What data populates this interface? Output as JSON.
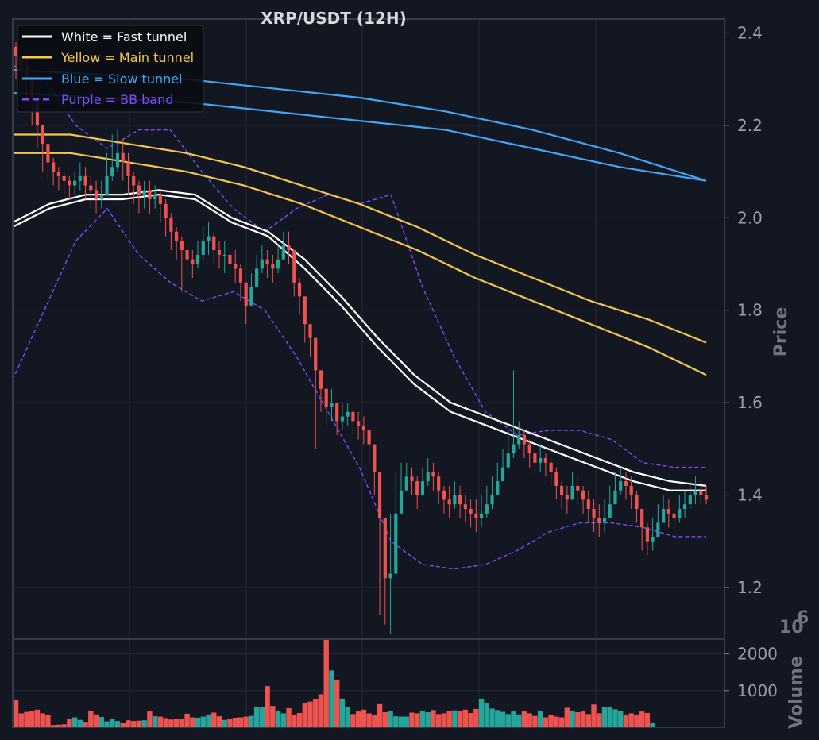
{
  "chart_data": {
    "type": "candlestick",
    "title": "XRP/USDT (12H)",
    "ylabel": "Price",
    "ylim": [
      1.09,
      2.43
    ],
    "yticks": [
      "2.4",
      "2.2",
      "2.0",
      "1.8",
      "1.6",
      "1.4",
      "1.2"
    ],
    "grid": true,
    "legend_position": "top-left",
    "legend": [
      {
        "label": "White = Fast tunnel",
        "color": "#ffffff",
        "style": "solid"
      },
      {
        "label": "Yellow = Main tunnel",
        "color": "#f5c84c",
        "style": "solid"
      },
      {
        "label": "Blue = Slow tunnel",
        "color": "#42a5f5",
        "style": "solid"
      },
      {
        "label": "Purple = BB band",
        "color": "#7c4dff",
        "style": "dashed"
      }
    ],
    "colors": {
      "up": "#26a69a",
      "down": "#ef5350",
      "fast": "#ffffff",
      "main": "#f5c84c",
      "slow": "#42a5f5",
      "bb": "#7c4dff"
    },
    "candle_count": 120,
    "close": [
      2.35,
      2.33,
      2.3,
      2.26,
      2.2,
      2.16,
      2.12,
      2.1,
      2.09,
      2.08,
      2.07,
      2.08,
      2.09,
      2.07,
      2.06,
      2.04,
      2.05,
      2.09,
      2.11,
      2.14,
      2.12,
      2.09,
      2.07,
      2.05,
      2.06,
      2.04,
      2.05,
      2.03,
      2.0,
      1.97,
      1.95,
      1.93,
      1.91,
      1.9,
      1.92,
      1.95,
      1.96,
      1.93,
      1.92,
      1.92,
      1.9,
      1.89,
      1.86,
      1.81,
      1.85,
      1.89,
      1.91,
      1.9,
      1.89,
      1.91,
      1.94,
      1.93,
      1.86,
      1.83,
      1.77,
      1.74,
      1.67,
      1.63,
      1.59,
      1.6,
      1.56,
      1.57,
      1.58,
      1.56,
      1.55,
      1.54,
      1.51,
      1.45,
      1.35,
      1.22,
      1.23,
      1.36,
      1.41,
      1.44,
      1.43,
      1.4,
      1.43,
      1.45,
      1.44,
      1.41,
      1.39,
      1.38,
      1.4,
      1.38,
      1.37,
      1.36,
      1.35,
      1.36,
      1.38,
      1.4,
      1.43,
      1.46,
      1.49,
      1.51,
      1.53,
      1.51,
      1.49,
      1.47,
      1.48,
      1.47,
      1.45,
      1.42,
      1.4,
      1.39,
      1.42,
      1.41,
      1.39,
      1.37,
      1.35,
      1.34,
      1.35,
      1.38,
      1.41,
      1.43,
      1.42,
      1.4,
      1.37,
      1.33,
      1.3,
      1.31,
      1.34,
      1.37,
      1.36,
      1.35,
      1.37,
      1.38,
      1.4,
      1.41,
      1.4,
      1.39
    ],
    "high": [
      2.38,
      2.36,
      2.34,
      2.31,
      2.26,
      2.2,
      2.16,
      2.13,
      2.11,
      2.1,
      2.09,
      2.1,
      2.12,
      2.11,
      2.09,
      2.08,
      2.08,
      2.14,
      2.18,
      2.19,
      2.17,
      2.14,
      2.1,
      2.08,
      2.08,
      2.08,
      2.07,
      2.06,
      2.04,
      2.01,
      1.98,
      1.96,
      1.94,
      1.93,
      1.95,
      1.98,
      1.99,
      1.97,
      1.95,
      1.95,
      1.93,
      1.93,
      1.9,
      1.86,
      1.88,
      1.92,
      1.94,
      1.93,
      1.92,
      1.94,
      1.97,
      1.97,
      1.92,
      1.87,
      1.82,
      1.77,
      1.71,
      1.66,
      1.62,
      1.63,
      1.6,
      1.6,
      1.6,
      1.59,
      1.58,
      1.57,
      1.54,
      1.5,
      1.45,
      1.35,
      1.36,
      1.45,
      1.47,
      1.47,
      1.46,
      1.44,
      1.46,
      1.48,
      1.47,
      1.45,
      1.42,
      1.42,
      1.43,
      1.42,
      1.4,
      1.39,
      1.39,
      1.4,
      1.42,
      1.44,
      1.47,
      1.5,
      1.54,
      1.67,
      1.56,
      1.54,
      1.52,
      1.5,
      1.51,
      1.49,
      1.48,
      1.46,
      1.43,
      1.42,
      1.45,
      1.44,
      1.42,
      1.41,
      1.39,
      1.38,
      1.39,
      1.42,
      1.45,
      1.46,
      1.45,
      1.44,
      1.41,
      1.37,
      1.34,
      1.35,
      1.38,
      1.4,
      1.39,
      1.38,
      1.4,
      1.41,
      1.43,
      1.44,
      1.43,
      1.42
    ],
    "low": [
      2.3,
      2.28,
      2.25,
      2.2,
      2.15,
      2.1,
      2.08,
      2.07,
      2.06,
      2.05,
      2.04,
      2.05,
      2.06,
      2.04,
      2.02,
      2.01,
      2.02,
      2.06,
      2.08,
      2.1,
      2.08,
      2.05,
      2.03,
      2.01,
      2.02,
      2.01,
      2.02,
      1.99,
      1.96,
      1.93,
      1.91,
      1.84,
      1.87,
      1.87,
      1.89,
      1.91,
      1.92,
      1.9,
      1.89,
      1.88,
      1.87,
      1.86,
      1.82,
      1.77,
      1.81,
      1.86,
      1.88,
      1.87,
      1.86,
      1.88,
      1.91,
      1.9,
      1.83,
      1.79,
      1.73,
      1.7,
      1.5,
      1.58,
      1.55,
      1.56,
      1.53,
      1.54,
      1.55,
      1.53,
      1.52,
      1.51,
      1.47,
      1.4,
      1.14,
      1.12,
      1.1,
      1.32,
      1.38,
      1.41,
      1.4,
      1.37,
      1.4,
      1.42,
      1.41,
      1.38,
      1.36,
      1.35,
      1.37,
      1.35,
      1.34,
      1.33,
      1.32,
      1.33,
      1.35,
      1.37,
      1.4,
      1.43,
      1.46,
      1.48,
      1.5,
      1.48,
      1.46,
      1.44,
      1.45,
      1.44,
      1.42,
      1.39,
      1.37,
      1.36,
      1.39,
      1.38,
      1.36,
      1.34,
      1.32,
      1.31,
      1.32,
      1.35,
      1.38,
      1.4,
      1.39,
      1.37,
      1.34,
      1.28,
      1.27,
      1.28,
      1.31,
      1.34,
      1.33,
      1.32,
      1.34,
      1.35,
      1.37,
      1.38,
      1.38,
      1.38
    ],
    "fast_tunnel": [
      [
        1.99,
        2.03,
        2.05,
        2.05,
        2.06,
        2.05,
        2.0,
        1.97,
        1.91,
        1.83,
        1.74,
        1.66,
        1.6,
        1.57,
        1.54,
        1.51,
        1.48,
        1.45,
        1.43,
        1.42
      ],
      [
        1.98,
        2.02,
        2.04,
        2.04,
        2.05,
        2.04,
        1.99,
        1.96,
        1.89,
        1.81,
        1.72,
        1.64,
        1.58,
        1.55,
        1.52,
        1.49,
        1.46,
        1.43,
        1.41,
        1.41
      ]
    ],
    "main_tunnel": [
      [
        2.18,
        2.18,
        2.16,
        2.14,
        2.11,
        2.07,
        2.03,
        1.98,
        1.92,
        1.87,
        1.82,
        1.78,
        1.73
      ],
      [
        2.14,
        2.14,
        2.12,
        2.1,
        2.07,
        2.03,
        1.98,
        1.93,
        1.87,
        1.82,
        1.77,
        1.72,
        1.66
      ]
    ],
    "slow_tunnel": [
      [
        2.32,
        2.31,
        2.3,
        2.28,
        2.26,
        2.23,
        2.19,
        2.14,
        2.08
      ],
      [
        2.27,
        2.26,
        2.25,
        2.23,
        2.21,
        2.19,
        2.15,
        2.11,
        2.08
      ]
    ],
    "bb_upper": [
      2.33,
      2.3,
      2.2,
      2.15,
      2.19,
      2.19,
      2.1,
      2.02,
      1.97,
      2.02,
      2.05,
      2.03,
      2.05,
      1.85,
      1.7,
      1.58,
      1.53,
      1.54,
      1.54,
      1.52,
      1.47,
      1.46,
      1.46
    ],
    "bb_lower": [
      1.65,
      1.8,
      1.95,
      2.02,
      1.92,
      1.86,
      1.82,
      1.84,
      1.8,
      1.7,
      1.58,
      1.46,
      1.3,
      1.25,
      1.24,
      1.25,
      1.28,
      1.32,
      1.34,
      1.34,
      1.33,
      1.31,
      1.31
    ],
    "volume": {
      "label": "Volume",
      "exponent": "6",
      "yticks": [
        "2000",
        "1000"
      ],
      "ylim": [
        0,
        2400
      ],
      "values": [
        750,
        380,
        420,
        440,
        480,
        380,
        330,
        60,
        70,
        80,
        220,
        270,
        200,
        150,
        440,
        350,
        280,
        160,
        220,
        170,
        130,
        190,
        170,
        180,
        190,
        430,
        300,
        290,
        250,
        210,
        220,
        230,
        370,
        270,
        260,
        290,
        350,
        400,
        300,
        200,
        220,
        260,
        270,
        290,
        310,
        550,
        540,
        1120,
        580,
        450,
        380,
        520,
        330,
        390,
        650,
        700,
        780,
        900,
        2380,
        1550,
        1300,
        780,
        540,
        360,
        430,
        480,
        380,
        330,
        630,
        410,
        440,
        300,
        290,
        290,
        400,
        380,
        450,
        410,
        470,
        360,
        380,
        450,
        460,
        440,
        480,
        390,
        500,
        780,
        660,
        510,
        470,
        420,
        360,
        430,
        350,
        430,
        380,
        310,
        440,
        270,
        340,
        290,
        270,
        530,
        440,
        410,
        430,
        360,
        620,
        380,
        540,
        560,
        490,
        440,
        330,
        380,
        340,
        430,
        390,
        130
      ]
    }
  }
}
